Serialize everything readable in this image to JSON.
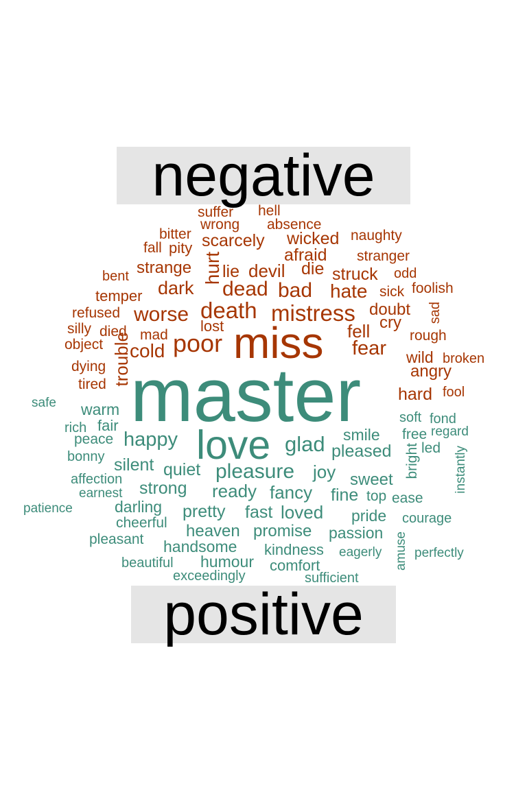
{
  "labels": {
    "negative": "negative",
    "positive": "positive"
  },
  "colors": {
    "negative": "#a63603",
    "positive": "#3d8c7a",
    "label_bg": "#e5e5e5",
    "label_text": "#000000"
  },
  "negative_words": [
    "miss",
    "mistress",
    "death",
    "poor",
    "dead",
    "bad",
    "hate",
    "worse",
    "cold",
    "fear",
    "afraid",
    "wicked",
    "scarcely",
    "devil",
    "strange",
    "dark",
    "hurt",
    "lie",
    "die",
    "struck",
    "doubt",
    "cry",
    "fell",
    "angry",
    "wild",
    "hard",
    "trouble",
    "lost",
    "mad",
    "died",
    "tired",
    "dying",
    "object",
    "silly",
    "refused",
    "temper",
    "bent",
    "fall",
    "pity",
    "bitter",
    "wrong",
    "suffer",
    "hell",
    "absence",
    "naughty",
    "stranger",
    "odd",
    "foolish",
    "sick",
    "sad",
    "rough",
    "broken",
    "fool"
  ],
  "positive_words": [
    "master",
    "love",
    "pleasure",
    "glad",
    "pleased",
    "happy",
    "smile",
    "joy",
    "silent",
    "quiet",
    "strong",
    "ready",
    "fancy",
    "sweet",
    "fine",
    "fast",
    "loved",
    "pretty",
    "darling",
    "heaven",
    "promise",
    "passion",
    "pride",
    "handsome",
    "kindness",
    "humour",
    "comfort",
    "warm",
    "fair",
    "rich",
    "peace",
    "bonny",
    "affection",
    "earnest",
    "patience",
    "cheerful",
    "pleasant",
    "beautiful",
    "exceedingly",
    "sufficient",
    "eagerly",
    "perfectly",
    "amuse",
    "courage",
    "ease",
    "top",
    "led",
    "free",
    "soft",
    "fond",
    "regard",
    "bright",
    "instantly",
    "safe"
  ]
}
